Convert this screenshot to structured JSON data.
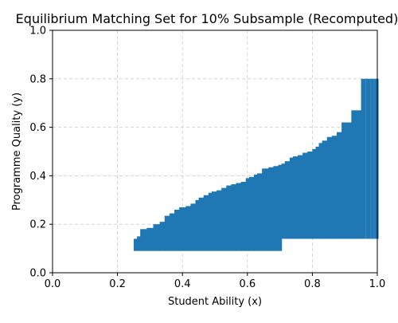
{
  "chart_data": {
    "type": "area",
    "title": "Equilibrium Matching Set for 10% Subsample (Recomputed)",
    "xlabel": "Student Ability (x)",
    "ylabel": "Programme Quality (y)",
    "xlim": [
      0,
      1
    ],
    "ylim": [
      0,
      1
    ],
    "xticks": [
      "0.0",
      "0.2",
      "0.4",
      "0.6",
      "0.8",
      "1.0"
    ],
    "yticks": [
      "0.0",
      "0.2",
      "0.4",
      "0.6",
      "0.8",
      "1.0"
    ],
    "grid": true,
    "fill_color": "#1f77b4",
    "grid_color": "#cccccc",
    "series": [
      {
        "x": [
          0.25,
          0.26,
          0.27,
          0.29,
          0.31,
          0.33,
          0.345,
          0.36,
          0.375,
          0.39,
          0.41,
          0.425,
          0.44,
          0.45,
          0.465,
          0.48,
          0.49,
          0.505,
          0.52,
          0.535,
          0.55,
          0.565,
          0.58,
          0.595,
          0.605,
          0.62,
          0.63,
          0.645,
          0.665,
          0.68,
          0.695,
          0.705,
          0.715,
          0.73,
          0.74,
          0.755,
          0.77,
          0.785,
          0.8,
          0.81,
          0.82,
          0.83,
          0.845,
          0.86,
          0.875,
          0.89,
          0.905,
          0.92,
          0.935,
          0.95,
          0.965,
          0.98,
          0.99,
          1.0
        ],
        "upper": [
          0.14,
          0.15,
          0.18,
          0.185,
          0.2,
          0.21,
          0.235,
          0.245,
          0.26,
          0.27,
          0.275,
          0.285,
          0.3,
          0.31,
          0.32,
          0.33,
          0.335,
          0.34,
          0.35,
          0.36,
          0.365,
          0.37,
          0.375,
          0.39,
          0.395,
          0.405,
          0.41,
          0.43,
          0.435,
          0.44,
          0.445,
          0.45,
          0.46,
          0.475,
          0.48,
          0.485,
          0.495,
          0.5,
          0.51,
          0.52,
          0.535,
          0.545,
          0.56,
          0.565,
          0.58,
          0.62,
          0.62,
          0.67,
          0.67,
          0.8,
          0.8,
          0.8,
          0.8,
          0.8
        ],
        "lower": [
          0.09,
          0.09,
          0.09,
          0.09,
          0.09,
          0.09,
          0.09,
          0.09,
          0.09,
          0.09,
          0.09,
          0.09,
          0.09,
          0.09,
          0.09,
          0.09,
          0.09,
          0.09,
          0.09,
          0.09,
          0.09,
          0.09,
          0.09,
          0.09,
          0.09,
          0.09,
          0.09,
          0.09,
          0.09,
          0.09,
          0.09,
          0.14,
          0.14,
          0.14,
          0.14,
          0.14,
          0.14,
          0.14,
          0.14,
          0.14,
          0.14,
          0.14,
          0.14,
          0.14,
          0.14,
          0.14,
          0.14,
          0.14,
          0.14,
          0.14,
          0.14,
          0.14,
          0.14,
          0.14
        ]
      }
    ]
  }
}
